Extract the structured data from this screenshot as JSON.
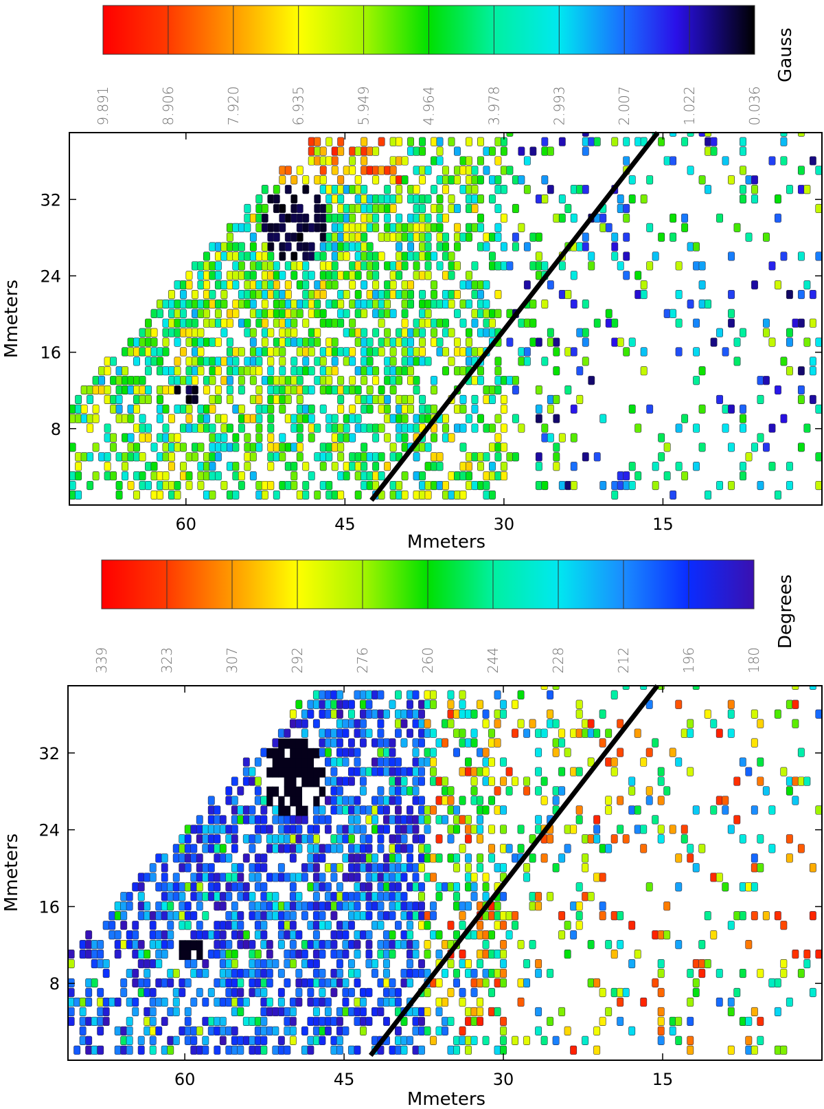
{
  "chart_data": [
    {
      "type": "heatmap",
      "colorbar": {
        "unit": "Gauss",
        "ticks": [
          "9.891",
          "8.906",
          "7.920",
          "6.935",
          "5.949",
          "4.964",
          "3.978",
          "2.993",
          "2.007",
          "1.022",
          "0.036"
        ],
        "range": [
          0.036,
          9.891
        ]
      },
      "xlabel": "Mmeters",
      "ylabel": "Mmeters",
      "xticks": [
        "60",
        "45",
        "30",
        "15"
      ],
      "yticks": [
        "32",
        "24",
        "16",
        "8"
      ],
      "xlim": [
        71,
        0
      ],
      "ylim": [
        0,
        39
      ],
      "x_reversed": true,
      "diagonal_line": {
        "from": [
          42.5,
          0.5
        ],
        "to": [
          15.5,
          39
        ]
      },
      "grid": false
    },
    {
      "type": "heatmap",
      "colorbar": {
        "unit": "Degrees",
        "ticks": [
          "339",
          "323",
          "307",
          "292",
          "276",
          "260",
          "244",
          "228",
          "212",
          "196",
          "180"
        ],
        "range": [
          180,
          339
        ]
      },
      "xlabel": "Mmeters",
      "ylabel": "Mmeters",
      "xticks": [
        "60",
        "45",
        "30",
        "15"
      ],
      "yticks": [
        "32",
        "24",
        "16",
        "8"
      ],
      "xlim": [
        71,
        0
      ],
      "ylim": [
        0,
        39
      ],
      "x_reversed": true,
      "diagonal_line": {
        "from": [
          42.5,
          0.5
        ],
        "to": [
          15.5,
          39
        ]
      },
      "grid": false
    }
  ]
}
